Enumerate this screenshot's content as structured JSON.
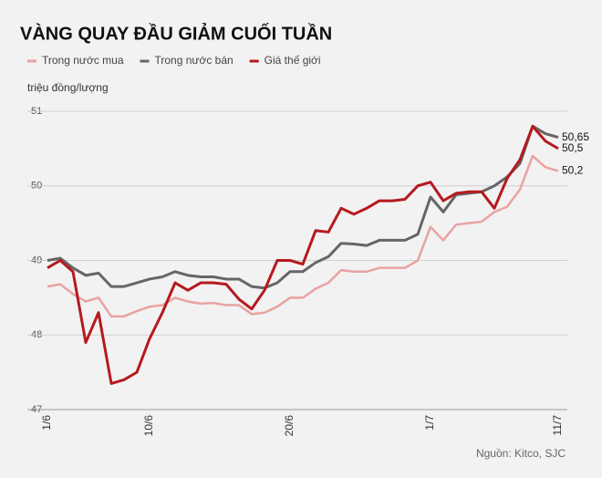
{
  "chart_data": {
    "type": "line",
    "title": "VÀNG QUAY ĐẦU GIẢM CUỐI TUẦN",
    "y_label": "triệu đồng/lượng",
    "source": "Nguồn: Kitco, SJC",
    "categories": [
      "1/6",
      null,
      null,
      null,
      null,
      null,
      null,
      null,
      "10/6",
      null,
      null,
      null,
      null,
      null,
      null,
      null,
      null,
      null,
      null,
      "20/6",
      null,
      null,
      null,
      null,
      null,
      null,
      null,
      null,
      null,
      null,
      "1/7",
      null,
      null,
      null,
      null,
      null,
      null,
      null,
      null,
      null,
      "11/7"
    ],
    "ylim": [
      47,
      51
    ],
    "yticks": [
      47,
      48,
      49,
      50,
      51
    ],
    "grid": true,
    "legend": "top-left",
    "series": [
      {
        "name": "Trong nước mua",
        "color": "#e8a3a3",
        "values": [
          48.65,
          48.68,
          48.55,
          48.45,
          48.5,
          48.25,
          48.25,
          48.32,
          48.38,
          48.4,
          48.5,
          48.45,
          48.42,
          48.43,
          48.4,
          48.4,
          48.28,
          48.3,
          48.38,
          48.5,
          48.5,
          48.62,
          48.7,
          48.87,
          48.85,
          48.85,
          48.9,
          48.9,
          48.9,
          49.0,
          49.45,
          49.27,
          49.48,
          49.5,
          49.52,
          49.65,
          49.72,
          49.95,
          50.4,
          50.25,
          50.2
        ],
        "value_labels": [
          null,
          null,
          null,
          null,
          null,
          null,
          null,
          null,
          null,
          null,
          null,
          null,
          null,
          null,
          null,
          null,
          null,
          null,
          null,
          null,
          null,
          null,
          null,
          null,
          null,
          null,
          null,
          null,
          null,
          null,
          null,
          null,
          null,
          null,
          null,
          null,
          null,
          null,
          null,
          null,
          "50,2"
        ]
      },
      {
        "name": "Trong nước bán",
        "color": "#666666",
        "values": [
          49.0,
          49.03,
          48.9,
          48.8,
          48.83,
          48.65,
          48.65,
          48.7,
          48.75,
          48.78,
          48.85,
          48.8,
          48.78,
          48.78,
          48.75,
          48.75,
          48.65,
          48.63,
          48.7,
          48.85,
          48.85,
          48.97,
          49.05,
          49.23,
          49.22,
          49.2,
          49.27,
          49.27,
          49.27,
          49.35,
          49.85,
          49.65,
          49.88,
          49.9,
          49.92,
          50.0,
          50.12,
          50.3,
          50.8,
          50.7,
          50.65
        ],
        "value_labels": [
          null,
          null,
          null,
          null,
          null,
          null,
          null,
          null,
          null,
          null,
          null,
          null,
          null,
          null,
          null,
          null,
          null,
          null,
          null,
          null,
          null,
          null,
          null,
          null,
          null,
          null,
          null,
          null,
          null,
          null,
          null,
          null,
          null,
          null,
          null,
          null,
          null,
          null,
          null,
          null,
          "50,65"
        ]
      },
      {
        "name": "Giá thế giới",
        "color": "#b51a1f",
        "values": [
          48.9,
          49.0,
          48.85,
          47.9,
          48.3,
          47.35,
          47.4,
          47.5,
          47.95,
          48.3,
          48.7,
          48.6,
          48.7,
          48.7,
          48.68,
          48.48,
          48.35,
          48.6,
          49.0,
          49.0,
          48.95,
          49.4,
          49.38,
          49.7,
          49.62,
          49.7,
          49.8,
          49.8,
          49.82,
          50.0,
          50.05,
          49.8,
          49.9,
          49.92,
          49.92,
          49.7,
          50.1,
          50.35,
          50.8,
          50.6,
          50.5
        ],
        "value_labels": [
          null,
          null,
          null,
          null,
          null,
          null,
          null,
          null,
          null,
          null,
          null,
          null,
          null,
          null,
          null,
          null,
          null,
          null,
          null,
          null,
          null,
          null,
          null,
          null,
          null,
          null,
          null,
          null,
          null,
          null,
          null,
          null,
          null,
          null,
          null,
          null,
          null,
          null,
          null,
          null,
          "50,5"
        ]
      }
    ]
  }
}
